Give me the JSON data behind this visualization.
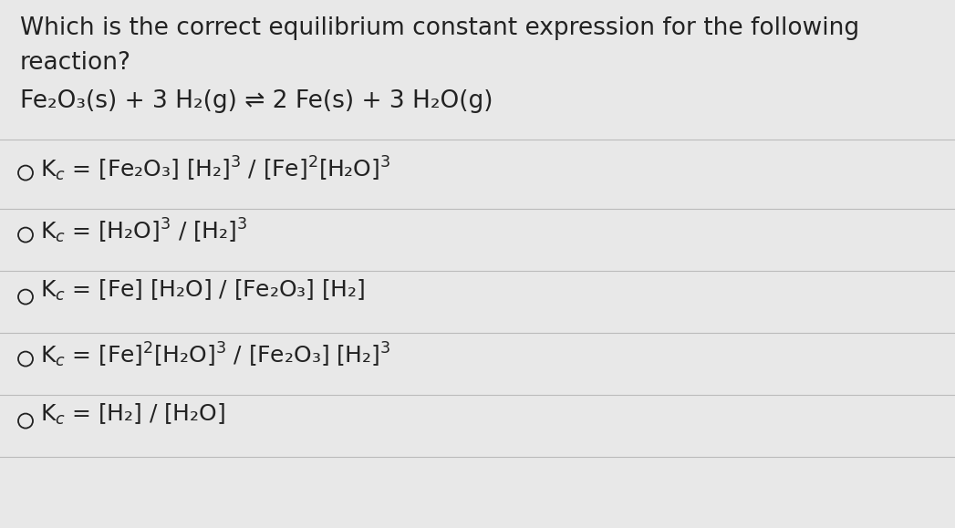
{
  "bg_color": "#e8e8e8",
  "text_color": "#222222",
  "title_line1": "Which is the correct equilibrium constant expression for the following",
  "title_line2": "reaction?",
  "reaction_parts": {
    "text": "Fe₂O₃(s) + 3 H₂(g) ⇌ 2 Fe(s) + 3 H₂O(g)"
  },
  "options_raw": [
    "K$_c$ = [Fe₂O₃] [H₂]$^3$ / [Fe]$^2$[H₂O]$^3$",
    "K$_c$ = [H₂O]$^3$ / [H₂]$^3$",
    "K$_c$ = [Fe] [H₂O] / [Fe₂O₃] [H₂]",
    "K$_c$ = [Fe]$^2$[H₂O]$^3$ / [Fe₂O₃] [H₂]$^3$",
    "K$_c$ = [H₂] / [H₂O]"
  ],
  "divider_color": "#bbbbbb",
  "font_size_title": 19,
  "font_size_reaction": 19,
  "font_size_options": 18
}
